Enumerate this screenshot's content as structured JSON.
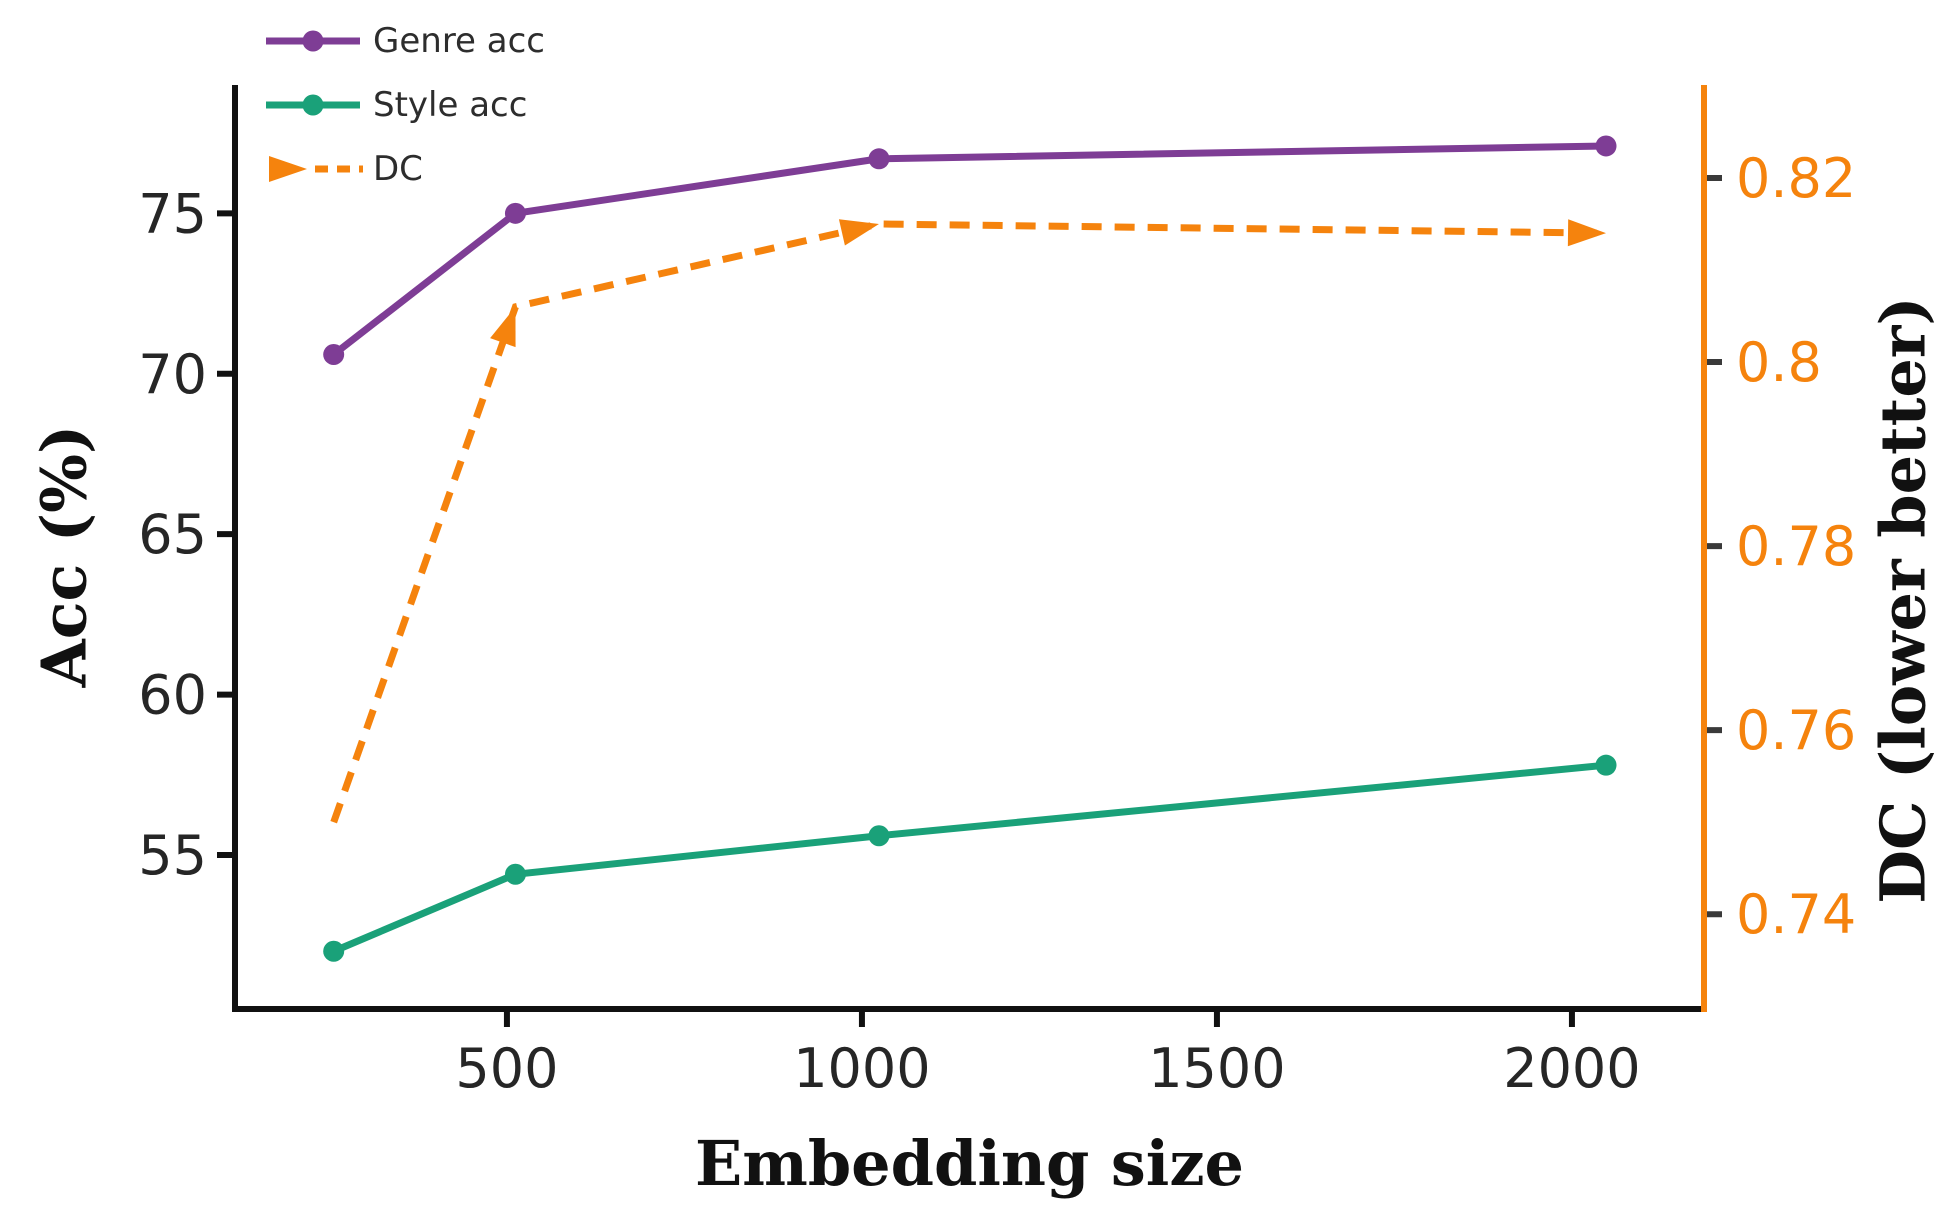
{
  "chart_data": {
    "type": "line",
    "title": "",
    "xlabel": "Embedding size",
    "ylabel_left": "Acc (%)",
    "ylabel_right": "DC (lower better)",
    "x": [
      256,
      512,
      1024,
      2048
    ],
    "series": [
      {
        "name": "Genre acc",
        "axis": "left",
        "color": "#7e3d95",
        "linestyle": "solid",
        "marker": "circle",
        "values": [
          70.6,
          75.0,
          76.7,
          77.1
        ]
      },
      {
        "name": "Style acc",
        "axis": "left",
        "color": "#1aa179",
        "linestyle": "solid",
        "marker": "circle",
        "values": [
          52.0,
          54.4,
          55.6,
          57.8
        ]
      },
      {
        "name": "DC",
        "axis": "right",
        "color": "#f5830d",
        "linestyle": "dashed",
        "marker": "arrow",
        "marker_indices": [
          1,
          2,
          3
        ],
        "values": [
          0.75,
          0.806,
          0.815,
          0.814
        ]
      }
    ],
    "x_ticks": [
      500,
      1000,
      1500,
      2000
    ],
    "y_left_ticks": [
      55,
      60,
      65,
      70,
      75
    ],
    "y_right_ticks": [
      {
        "v": 0.74,
        "label": "0.74"
      },
      {
        "v": 0.76,
        "label": "0.76"
      },
      {
        "v": 0.78,
        "label": "0.78"
      },
      {
        "v": 0.8,
        "label": "0.8"
      },
      {
        "v": 0.82,
        "label": "0.82"
      }
    ],
    "xlim": [
      117,
      2186
    ],
    "ylim_left": [
      50.2,
      79.0
    ],
    "ylim_right": [
      0.7297,
      0.8301
    ],
    "grid": false,
    "legend_position": "upper left",
    "colors": {
      "left_axis": "#111111",
      "tick_label": "#262626",
      "right_axis_spine": "#f5830d",
      "right_tick_mark": "#3a3a3a",
      "right_tick_label": "#f5830d",
      "legend_text": "#2d2d2d",
      "background": "#ffffff"
    }
  }
}
